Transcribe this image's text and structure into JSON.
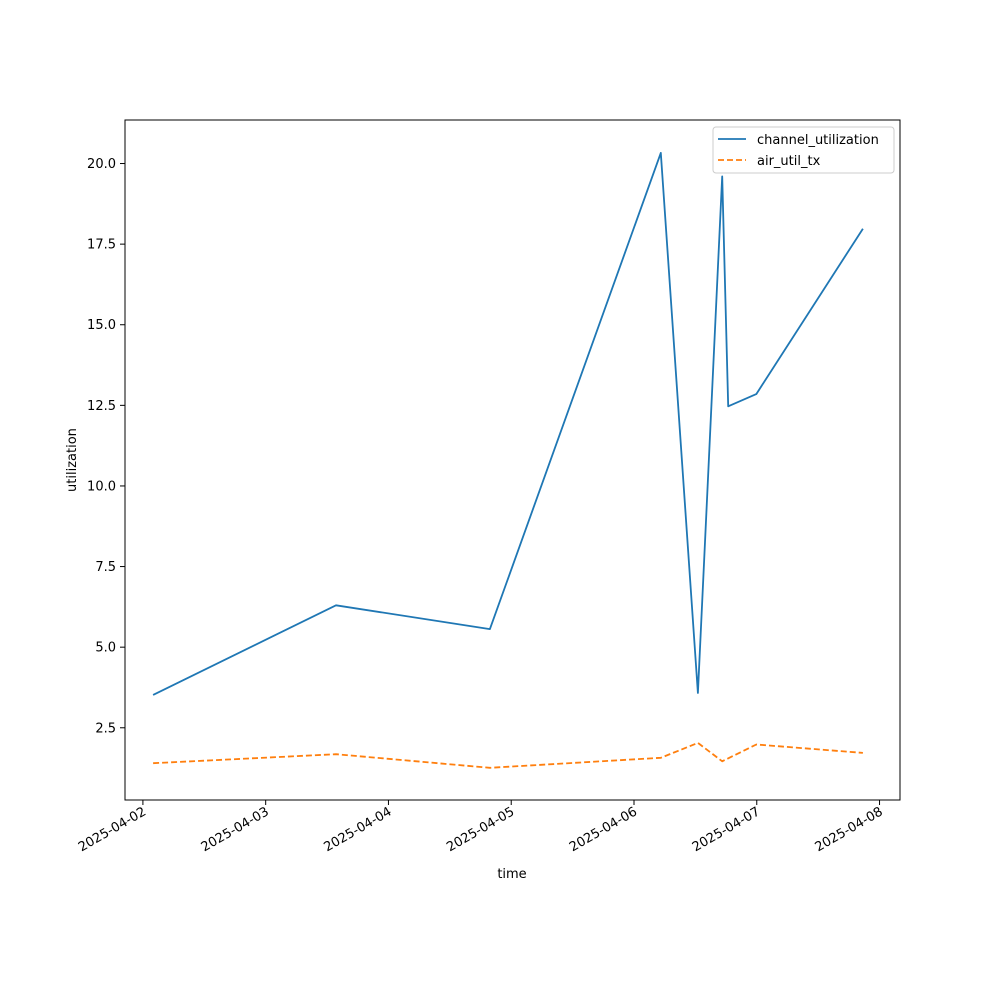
{
  "chart_data": {
    "type": "line",
    "title": "",
    "xlabel": "time",
    "ylabel": "utilization",
    "x_type": "datetime",
    "xlim": [
      "2025-04-01T20:30",
      "2025-04-08T04:00"
    ],
    "ylim": [
      0.26,
      21.35
    ],
    "x_ticks": [
      "2025-04-02",
      "2025-04-03",
      "2025-04-04",
      "2025-04-05",
      "2025-04-06",
      "2025-04-07",
      "2025-04-08"
    ],
    "y_ticks": [
      2.5,
      5.0,
      7.5,
      10.0,
      12.5,
      15.0,
      17.5,
      20.0
    ],
    "y_tick_labels": [
      "2.5",
      "5.0",
      "7.5",
      "10.0",
      "12.5",
      "15.0",
      "17.5",
      "20.0"
    ],
    "grid": false,
    "legend_position": "top-right",
    "series": [
      {
        "name": "channel_utilization",
        "color": "#1f77b4",
        "style": "solid",
        "x": [
          "2025-04-02T02:00",
          "2025-04-03T13:45",
          "2025-04-04T19:50",
          "2025-04-06T05:15",
          "2025-04-06T12:30",
          "2025-04-06T17:15",
          "2025-04-06T18:25",
          "2025-04-06T23:55",
          "2025-04-07T20:45"
        ],
        "values": [
          3.52,
          6.3,
          5.56,
          20.33,
          3.58,
          19.6,
          12.47,
          12.85,
          17.98
        ]
      },
      {
        "name": "air_util_tx",
        "color": "#ff7f0e",
        "style": "dashed",
        "x": [
          "2025-04-02T02:00",
          "2025-04-03T13:45",
          "2025-04-04T19:50",
          "2025-04-06T05:15",
          "2025-04-06T12:30",
          "2025-04-06T17:15",
          "2025-04-06T23:55",
          "2025-04-07T20:45"
        ],
        "values": [
          1.4,
          1.68,
          1.26,
          1.57,
          2.03,
          1.46,
          1.98,
          1.72
        ]
      }
    ]
  }
}
